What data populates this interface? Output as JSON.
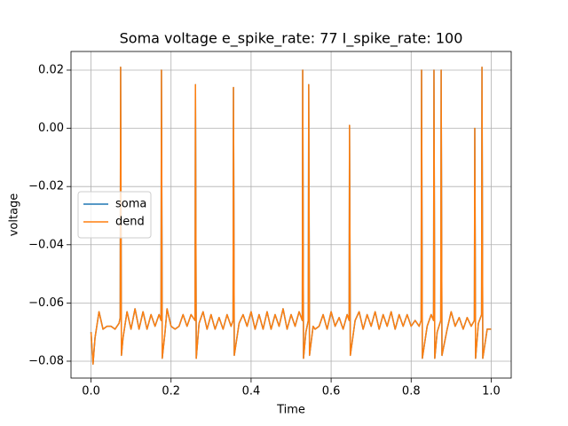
{
  "chart_data": {
    "type": "line",
    "title": "Soma voltage e_spike_rate: 77 I_spike_rate: 100",
    "xlabel": "Time",
    "ylabel": "voltage",
    "x": [
      0,
      0.005,
      0.01,
      0.02,
      0.03,
      0.04,
      0.05,
      0.06,
      0.07,
      0.073,
      0.074,
      0.076,
      0.08,
      0.09,
      0.1,
      0.11,
      0.12,
      0.13,
      0.14,
      0.15,
      0.16,
      0.17,
      0.175,
      0.176,
      0.178,
      0.185,
      0.19,
      0.2,
      0.21,
      0.22,
      0.23,
      0.24,
      0.25,
      0.26,
      0.261,
      0.263,
      0.27,
      0.28,
      0.29,
      0.3,
      0.31,
      0.32,
      0.33,
      0.34,
      0.35,
      0.355,
      0.356,
      0.358,
      0.37,
      0.38,
      0.39,
      0.4,
      0.41,
      0.42,
      0.43,
      0.44,
      0.45,
      0.46,
      0.47,
      0.48,
      0.49,
      0.5,
      0.51,
      0.52,
      0.528,
      0.529,
      0.531,
      0.537,
      0.543,
      0.544,
      0.546,
      0.555,
      0.56,
      0.57,
      0.58,
      0.59,
      0.6,
      0.61,
      0.62,
      0.63,
      0.64,
      0.645,
      0.646,
      0.648,
      0.66,
      0.67,
      0.68,
      0.69,
      0.7,
      0.71,
      0.72,
      0.73,
      0.74,
      0.75,
      0.76,
      0.77,
      0.78,
      0.79,
      0.8,
      0.81,
      0.82,
      0.825,
      0.826,
      0.828,
      0.84,
      0.85,
      0.856,
      0.857,
      0.859,
      0.865,
      0.874,
      0.875,
      0.877,
      0.89,
      0.9,
      0.91,
      0.92,
      0.93,
      0.94,
      0.95,
      0.958,
      0.959,
      0.961,
      0.968,
      0.976,
      0.977,
      0.979,
      0.99,
      1
    ],
    "series": [
      {
        "name": "soma",
        "color": "#1f77b4",
        "values": [
          -0.07,
          -0.081,
          -0.072,
          -0.063,
          -0.069,
          -0.068,
          -0.068,
          -0.069,
          -0.067,
          -0.065,
          0.021,
          -0.078,
          -0.072,
          -0.063,
          -0.069,
          -0.062,
          -0.069,
          -0.063,
          -0.069,
          -0.064,
          -0.068,
          -0.064,
          -0.066,
          0.02,
          -0.079,
          -0.07,
          -0.062,
          -0.068,
          -0.069,
          -0.068,
          -0.064,
          -0.068,
          -0.064,
          -0.066,
          0.015,
          -0.079,
          -0.067,
          -0.063,
          -0.069,
          -0.064,
          -0.069,
          -0.065,
          -0.069,
          -0.064,
          -0.068,
          -0.066,
          0.014,
          -0.078,
          -0.067,
          -0.064,
          -0.068,
          -0.063,
          -0.069,
          -0.064,
          -0.069,
          -0.063,
          -0.069,
          -0.064,
          -0.068,
          -0.062,
          -0.069,
          -0.064,
          -0.068,
          -0.063,
          -0.066,
          0.02,
          -0.079,
          -0.07,
          -0.066,
          0.015,
          -0.078,
          -0.068,
          -0.069,
          -0.068,
          -0.064,
          -0.069,
          -0.063,
          -0.068,
          -0.065,
          -0.069,
          -0.064,
          -0.066,
          0.001,
          -0.078,
          -0.066,
          -0.063,
          -0.069,
          -0.064,
          -0.068,
          -0.063,
          -0.069,
          -0.064,
          -0.068,
          -0.063,
          -0.069,
          -0.064,
          -0.068,
          -0.064,
          -0.068,
          -0.066,
          -0.068,
          -0.066,
          0.02,
          -0.079,
          -0.068,
          -0.064,
          -0.066,
          0.02,
          -0.079,
          -0.07,
          -0.066,
          0.02,
          -0.078,
          -0.069,
          -0.063,
          -0.068,
          -0.065,
          -0.069,
          -0.065,
          -0.068,
          -0.066,
          0.0,
          -0.079,
          -0.067,
          -0.064,
          0.021,
          -0.079,
          -0.069,
          -0.069
        ]
      },
      {
        "name": "dend",
        "color": "#ff7f0e",
        "values": [
          -0.07,
          -0.081,
          -0.072,
          -0.063,
          -0.069,
          -0.068,
          -0.068,
          -0.069,
          -0.067,
          -0.065,
          0.021,
          -0.078,
          -0.072,
          -0.063,
          -0.069,
          -0.062,
          -0.069,
          -0.063,
          -0.069,
          -0.064,
          -0.068,
          -0.064,
          -0.066,
          0.02,
          -0.079,
          -0.07,
          -0.062,
          -0.068,
          -0.069,
          -0.068,
          -0.064,
          -0.068,
          -0.064,
          -0.066,
          0.015,
          -0.079,
          -0.067,
          -0.063,
          -0.069,
          -0.064,
          -0.069,
          -0.065,
          -0.069,
          -0.064,
          -0.068,
          -0.066,
          0.014,
          -0.078,
          -0.067,
          -0.064,
          -0.068,
          -0.063,
          -0.069,
          -0.064,
          -0.069,
          -0.063,
          -0.069,
          -0.064,
          -0.068,
          -0.062,
          -0.069,
          -0.064,
          -0.068,
          -0.063,
          -0.066,
          0.02,
          -0.079,
          -0.07,
          -0.066,
          0.015,
          -0.078,
          -0.068,
          -0.069,
          -0.068,
          -0.064,
          -0.069,
          -0.063,
          -0.068,
          -0.065,
          -0.069,
          -0.064,
          -0.066,
          0.001,
          -0.078,
          -0.066,
          -0.063,
          -0.069,
          -0.064,
          -0.068,
          -0.063,
          -0.069,
          -0.064,
          -0.068,
          -0.063,
          -0.069,
          -0.064,
          -0.068,
          -0.064,
          -0.068,
          -0.066,
          -0.068,
          -0.066,
          0.02,
          -0.079,
          -0.068,
          -0.064,
          -0.066,
          0.02,
          -0.079,
          -0.07,
          -0.066,
          0.02,
          -0.078,
          -0.069,
          -0.063,
          -0.068,
          -0.065,
          -0.069,
          -0.065,
          -0.068,
          -0.066,
          0.0,
          -0.079,
          -0.067,
          -0.064,
          0.021,
          -0.079,
          -0.069,
          -0.069
        ]
      }
    ],
    "xlim": [
      -0.05,
      1.05
    ],
    "xticks": [
      {
        "value": 0,
        "label": "0.0"
      },
      0.2,
      0.4,
      0.6,
      0.8,
      {
        "value": 1,
        "label": "1.0"
      }
    ],
    "ylim": [
      -0.0858,
      0.0264
    ],
    "yticks": [
      {
        "value": -0.08,
        "label": "−0.08"
      },
      {
        "value": -0.06,
        "label": "−0.06"
      },
      {
        "value": -0.04,
        "label": "−0.04"
      },
      {
        "value": -0.02,
        "label": "−0.02"
      },
      {
        "value": 0,
        "label": "0.00"
      },
      0.02
    ],
    "grid": true,
    "legend": "center left"
  }
}
